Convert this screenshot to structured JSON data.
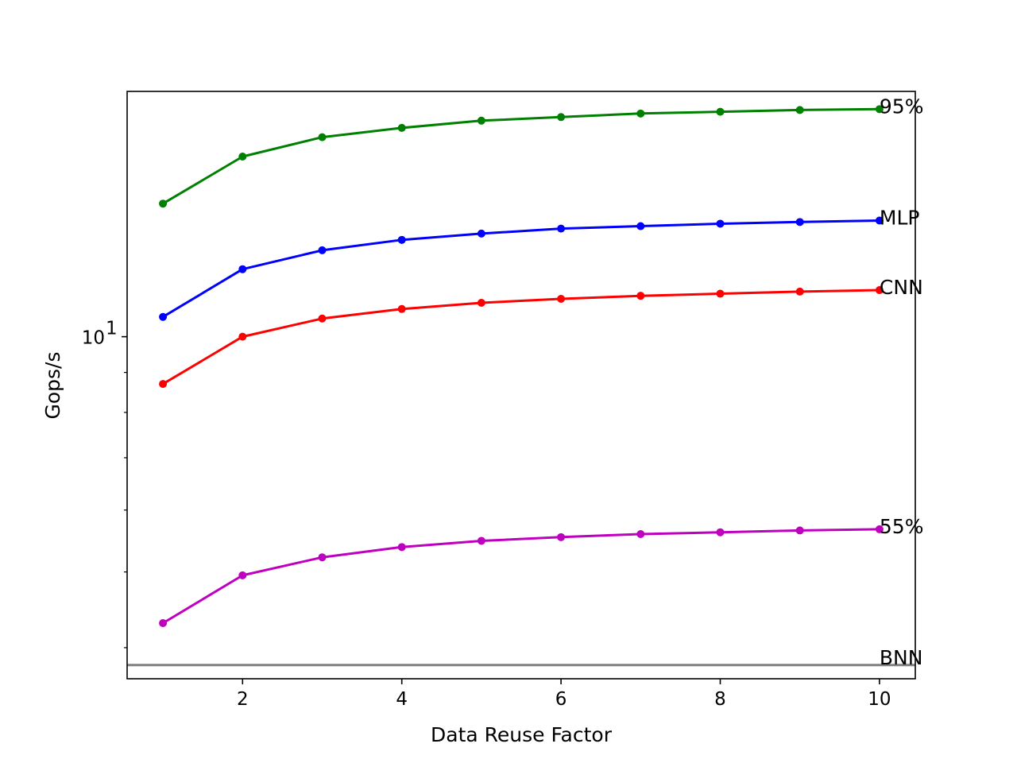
{
  "chart_data": {
    "type": "line",
    "title": "",
    "xlabel": "Data Reuse Factor",
    "ylabel": "Gops/s",
    "xlim": [
      0.55,
      10.45
    ],
    "ylim": [
      3.65,
      20.6
    ],
    "yscale": "log",
    "grid": false,
    "legend": "none",
    "x": [
      1,
      2,
      3,
      4,
      5,
      6,
      7,
      8,
      9,
      10
    ],
    "x_ticks": [
      2,
      4,
      6,
      8,
      10
    ],
    "x_tick_labels": [
      "2",
      "4",
      "6",
      "8",
      "10"
    ],
    "y_major_ticks": [
      10
    ],
    "y_major_tick_labels": [
      "10"
    ],
    "y_major_tick_exponent": "1",
    "y_minor_ticks": [
      4,
      5,
      6,
      7,
      8,
      9
    ],
    "series": [
      {
        "name": "95%",
        "color": "#008000",
        "values": [
          14.8,
          17.0,
          18.0,
          18.5,
          18.9,
          19.1,
          19.3,
          19.4,
          19.5,
          19.55
        ]
      },
      {
        "name": "MLP",
        "color": "#0000ff",
        "values": [
          10.6,
          12.2,
          12.9,
          13.3,
          13.55,
          13.75,
          13.85,
          13.95,
          14.02,
          14.08
        ]
      },
      {
        "name": "CNN",
        "color": "#ff0000",
        "values": [
          8.7,
          10.0,
          10.55,
          10.85,
          11.05,
          11.18,
          11.28,
          11.35,
          11.42,
          11.47
        ]
      },
      {
        "name": "55%",
        "color": "#bf00bf",
        "values": [
          4.3,
          4.95,
          5.22,
          5.38,
          5.48,
          5.54,
          5.59,
          5.62,
          5.65,
          5.67
        ]
      },
      {
        "name": "BNN",
        "color": "#808080",
        "constant": 3.8
      }
    ]
  }
}
